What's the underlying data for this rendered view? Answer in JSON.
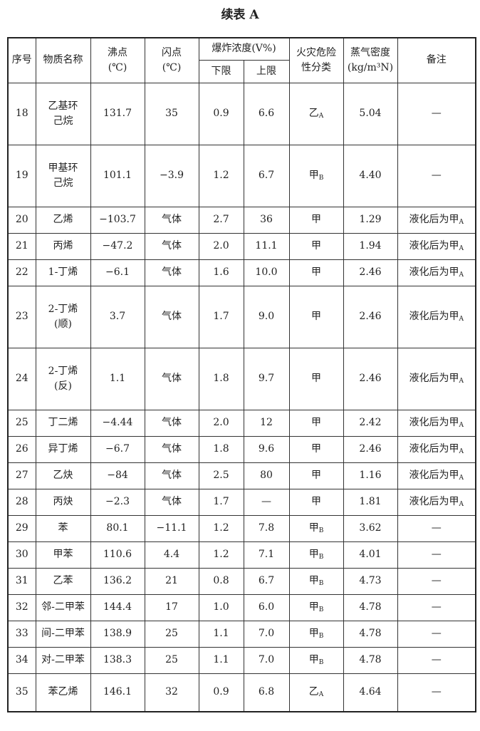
{
  "title": "续表 A",
  "header": {
    "no": "序号",
    "name": "物质名称",
    "boiling_point": "沸点",
    "boiling_unit": "(℃)",
    "flash_point": "闪点",
    "flash_unit": "(℃)",
    "explosion": "爆炸浓度(V%)",
    "lower": "下限",
    "upper": "上限",
    "hazard_line1": "火灾危险",
    "hazard_line2": "性分类",
    "vapor_line1": "蒸气密度",
    "vapor_line2": "(kg/m³N)",
    "remarks": "备注"
  },
  "rows": [
    {
      "no": "18",
      "name": [
        "乙基环",
        "己烷"
      ],
      "bp": "131.7",
      "fp": "35",
      "lo": "0.9",
      "hi": "6.6",
      "cls": "乙",
      "sub": "A",
      "vd": "5.04",
      "rm": "—",
      "rmsub": "",
      "h": "tall"
    },
    {
      "no": "19",
      "name": [
        "甲基环",
        "己烷"
      ],
      "bp": "101.1",
      "fp": "−3.9",
      "lo": "1.2",
      "hi": "6.7",
      "cls": "甲",
      "sub": "B",
      "vd": "4.40",
      "rm": "—",
      "rmsub": "",
      "h": "tall"
    },
    {
      "no": "20",
      "name": [
        "乙烯"
      ],
      "bp": "−103.7",
      "fp": "气体",
      "lo": "2.7",
      "hi": "36",
      "cls": "甲",
      "sub": "",
      "vd": "1.29",
      "rm": "液化后为甲",
      "rmsub": "A",
      "h": "short"
    },
    {
      "no": "21",
      "name": [
        "丙烯"
      ],
      "bp": "−47.2",
      "fp": "气体",
      "lo": "2.0",
      "hi": "11.1",
      "cls": "甲",
      "sub": "",
      "vd": "1.94",
      "rm": "液化后为甲",
      "rmsub": "A",
      "h": "short"
    },
    {
      "no": "22",
      "name": [
        "1-丁烯"
      ],
      "bp": "−6.1",
      "fp": "气体",
      "lo": "1.6",
      "hi": "10.0",
      "cls": "甲",
      "sub": "",
      "vd": "2.46",
      "rm": "液化后为甲",
      "rmsub": "A",
      "h": "short"
    },
    {
      "no": "23",
      "name": [
        "2-丁烯",
        "(顺)"
      ],
      "bp": "3.7",
      "fp": "气体",
      "lo": "1.7",
      "hi": "9.0",
      "cls": "甲",
      "sub": "",
      "vd": "2.46",
      "rm": "液化后为甲",
      "rmsub": "A",
      "h": "tall"
    },
    {
      "no": "24",
      "name": [
        "2-丁烯",
        "(反)"
      ],
      "bp": "1.1",
      "fp": "气体",
      "lo": "1.8",
      "hi": "9.7",
      "cls": "甲",
      "sub": "",
      "vd": "2.46",
      "rm": "液化后为甲",
      "rmsub": "A",
      "h": "tall"
    },
    {
      "no": "25",
      "name": [
        "丁二烯"
      ],
      "bp": "−4.44",
      "fp": "气体",
      "lo": "2.0",
      "hi": "12",
      "cls": "甲",
      "sub": "",
      "vd": "2.42",
      "rm": "液化后为甲",
      "rmsub": "A",
      "h": "short"
    },
    {
      "no": "26",
      "name": [
        "异丁烯"
      ],
      "bp": "−6.7",
      "fp": "气体",
      "lo": "1.8",
      "hi": "9.6",
      "cls": "甲",
      "sub": "",
      "vd": "2.46",
      "rm": "液化后为甲",
      "rmsub": "A",
      "h": "short"
    },
    {
      "no": "27",
      "name": [
        "乙炔"
      ],
      "bp": "−84",
      "fp": "气体",
      "lo": "2.5",
      "hi": "80",
      "cls": "甲",
      "sub": "",
      "vd": "1.16",
      "rm": "液化后为甲",
      "rmsub": "A",
      "h": "short"
    },
    {
      "no": "28",
      "name": [
        "丙炔"
      ],
      "bp": "−2.3",
      "fp": "气体",
      "lo": "1.7",
      "hi": "—",
      "cls": "甲",
      "sub": "",
      "vd": "1.81",
      "rm": "液化后为甲",
      "rmsub": "A",
      "h": "short"
    },
    {
      "no": "29",
      "name": [
        "苯"
      ],
      "bp": "80.1",
      "fp": "−11.1",
      "lo": "1.2",
      "hi": "7.8",
      "cls": "甲",
      "sub": "B",
      "vd": "3.62",
      "rm": "—",
      "rmsub": "",
      "h": "short"
    },
    {
      "no": "30",
      "name": [
        "甲苯"
      ],
      "bp": "110.6",
      "fp": "4.4",
      "lo": "1.2",
      "hi": "7.1",
      "cls": "甲",
      "sub": "B",
      "vd": "4.01",
      "rm": "—",
      "rmsub": "",
      "h": "short"
    },
    {
      "no": "31",
      "name": [
        "乙苯"
      ],
      "bp": "136.2",
      "fp": "21",
      "lo": "0.8",
      "hi": "6.7",
      "cls": "甲",
      "sub": "B",
      "vd": "4.73",
      "rm": "—",
      "rmsub": "",
      "h": "short"
    },
    {
      "no": "32",
      "name": [
        "邻-二甲苯"
      ],
      "bp": "144.4",
      "fp": "17",
      "lo": "1.0",
      "hi": "6.0",
      "cls": "甲",
      "sub": "B",
      "vd": "4.78",
      "rm": "—",
      "rmsub": "",
      "h": "short"
    },
    {
      "no": "33",
      "name": [
        "间-二甲苯"
      ],
      "bp": "138.9",
      "fp": "25",
      "lo": "1.1",
      "hi": "7.0",
      "cls": "甲",
      "sub": "B",
      "vd": "4.78",
      "rm": "—",
      "rmsub": "",
      "h": "short"
    },
    {
      "no": "34",
      "name": [
        "对-二甲苯"
      ],
      "bp": "138.3",
      "fp": "25",
      "lo": "1.1",
      "hi": "7.0",
      "cls": "甲",
      "sub": "B",
      "vd": "4.78",
      "rm": "—",
      "rmsub": "",
      "h": "short"
    },
    {
      "no": "35",
      "name": [
        "苯乙烯"
      ],
      "bp": "146.1",
      "fp": "32",
      "lo": "0.9",
      "hi": "6.8",
      "cls": "乙",
      "sub": "A",
      "vd": "4.64",
      "rm": "—",
      "rmsub": "",
      "h": "last"
    }
  ]
}
